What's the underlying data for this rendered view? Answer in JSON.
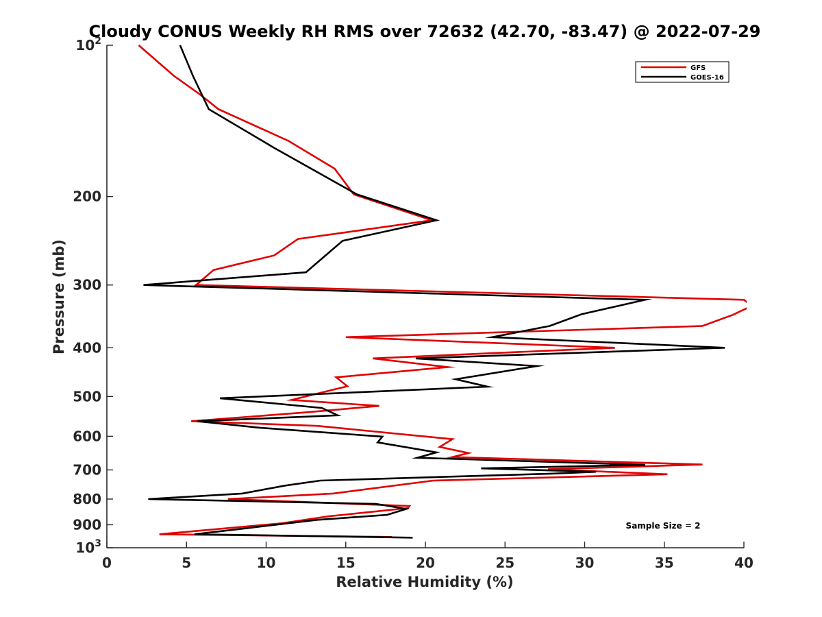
{
  "chart_data": {
    "type": "line",
    "title": "Cloudy CONUS Weekly RH RMS over 72632 (42.70, -83.47) @ 2022-07-29",
    "xlabel": "Relative Humidity (%)",
    "ylabel": "Pressure (mb)",
    "xlim": [
      0,
      40
    ],
    "ylim": [
      100,
      1000
    ],
    "y_scale": "log",
    "y_reversed": true,
    "grid": false,
    "legend_position": "top-right",
    "x_ticks": [
      "0",
      "5",
      "10",
      "15",
      "20",
      "25",
      "30",
      "35",
      "40"
    ],
    "y_ticks": [
      {
        "value": 100,
        "base": "10",
        "exp": "2"
      },
      {
        "value": 200,
        "label": "200"
      },
      {
        "value": 300,
        "label": "300"
      },
      {
        "value": 400,
        "label": "400"
      },
      {
        "value": 500,
        "label": "500"
      },
      {
        "value": 600,
        "label": "600"
      },
      {
        "value": 700,
        "label": "700"
      },
      {
        "value": 800,
        "label": "800"
      },
      {
        "value": 900,
        "label": "900"
      },
      {
        "value": 1000,
        "base": "10",
        "exp": "3"
      }
    ],
    "annotation": "Sample Size = 2",
    "series": [
      {
        "name": "GFS",
        "color": "#e00000",
        "points": [
          [
            2.0,
            100
          ],
          [
            4.2,
            115
          ],
          [
            5.8,
            125
          ],
          [
            7.0,
            134
          ],
          [
            11.4,
            155
          ],
          [
            14.3,
            176
          ],
          [
            15.5,
            198
          ],
          [
            20.4,
            223
          ],
          [
            12.0,
            243
          ],
          [
            10.5,
            262
          ],
          [
            6.7,
            280
          ],
          [
            5.6,
            300
          ],
          [
            40.0,
            321
          ],
          [
            40.5,
            330
          ],
          [
            39.3,
            344
          ],
          [
            37.4,
            362
          ],
          [
            15.0,
            381
          ],
          [
            31.9,
            400
          ],
          [
            16.7,
            420
          ],
          [
            21.4,
            437
          ],
          [
            14.4,
            458
          ],
          [
            15.1,
            477
          ],
          [
            11.6,
            508
          ],
          [
            17.1,
            522
          ],
          [
            12.4,
            538
          ],
          [
            5.3,
            560
          ],
          [
            13.2,
            572
          ],
          [
            21.7,
            608
          ],
          [
            20.9,
            630
          ],
          [
            22.7,
            648
          ],
          [
            21.7,
            660
          ],
          [
            37.4,
            683
          ],
          [
            27.7,
            698
          ],
          [
            35.2,
            714
          ],
          [
            20.5,
            735
          ],
          [
            14.2,
            780
          ],
          [
            7.6,
            800
          ],
          [
            19.0,
            826
          ],
          [
            18.9,
            834
          ],
          [
            13.9,
            866
          ],
          [
            11.0,
            894
          ],
          [
            3.3,
            940
          ],
          [
            17.9,
            952
          ]
        ]
      },
      {
        "name": "GOES-16",
        "color": "#000000",
        "points": [
          [
            4.6,
            100
          ],
          [
            5.4,
            115
          ],
          [
            6.4,
            134
          ],
          [
            10.5,
            160
          ],
          [
            15.7,
            198
          ],
          [
            20.7,
            223
          ],
          [
            14.8,
            245
          ],
          [
            12.5,
            283
          ],
          [
            2.3,
            300
          ],
          [
            33.8,
            321
          ],
          [
            29.8,
            343
          ],
          [
            27.8,
            362
          ],
          [
            24.2,
            381
          ],
          [
            38.8,
            400
          ],
          [
            19.4,
            420
          ],
          [
            27.0,
            435
          ],
          [
            21.9,
            462
          ],
          [
            23.9,
            478
          ],
          [
            7.1,
            504
          ],
          [
            13.5,
            527
          ],
          [
            14.5,
            545
          ],
          [
            5.7,
            560
          ],
          [
            9.6,
            577
          ],
          [
            17.3,
            601
          ],
          [
            17.0,
            617
          ],
          [
            20.7,
            646
          ],
          [
            19.5,
            662
          ],
          [
            33.8,
            684
          ],
          [
            23.5,
            695
          ],
          [
            30.7,
            706
          ],
          [
            27.9,
            712
          ],
          [
            13.4,
            735
          ],
          [
            11.2,
            752
          ],
          [
            8.5,
            780
          ],
          [
            2.6,
            800
          ],
          [
            16.9,
            818
          ],
          [
            18.8,
            837
          ],
          [
            17.6,
            860
          ],
          [
            13.2,
            880
          ],
          [
            8.8,
            914
          ],
          [
            5.5,
            940
          ],
          [
            19.2,
            955
          ]
        ]
      }
    ]
  }
}
